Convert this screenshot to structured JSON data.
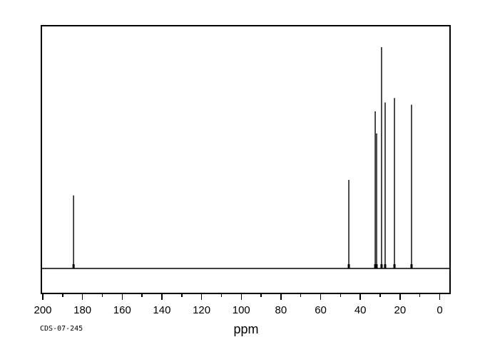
{
  "annotations": {
    "sample_id": "CDS-07-245"
  },
  "chart_data": {
    "type": "line",
    "subtype": "13C-NMR spectrum",
    "title": "",
    "xlabel": "ppm",
    "ylabel": "",
    "x_axis": {
      "min": 0,
      "max": 200,
      "reversed": true,
      "major_tick_interval": 20,
      "minor_tick_interval": 10,
      "major_tick_ppm": [
        200,
        180,
        160,
        140,
        120,
        100,
        80,
        60,
        40,
        20,
        0
      ],
      "minor_tick_ppm": [
        190,
        170,
        150,
        130,
        110,
        90,
        70,
        50,
        30,
        10
      ],
      "tick_labels": [
        "200",
        "180",
        "160",
        "140",
        "120",
        "100",
        "80",
        "60",
        "40",
        "20",
        "0"
      ]
    },
    "grid": false,
    "legend": false,
    "baseline_intensity": 0,
    "peaks": [
      {
        "ppm": 184.5,
        "intensity": 0.33
      },
      {
        "ppm": 45.8,
        "intensity": 0.4
      },
      {
        "ppm": 32.5,
        "intensity": 0.71
      },
      {
        "ppm": 31.8,
        "intensity": 0.61
      },
      {
        "ppm": 29.3,
        "intensity": 1.0
      },
      {
        "ppm": 27.5,
        "intensity": 0.75
      },
      {
        "ppm": 22.8,
        "intensity": 0.77
      },
      {
        "ppm": 14.2,
        "intensity": 0.74
      }
    ],
    "colors": {
      "trace": "#000000",
      "frame": "#000000",
      "background": "#ffffff"
    }
  }
}
